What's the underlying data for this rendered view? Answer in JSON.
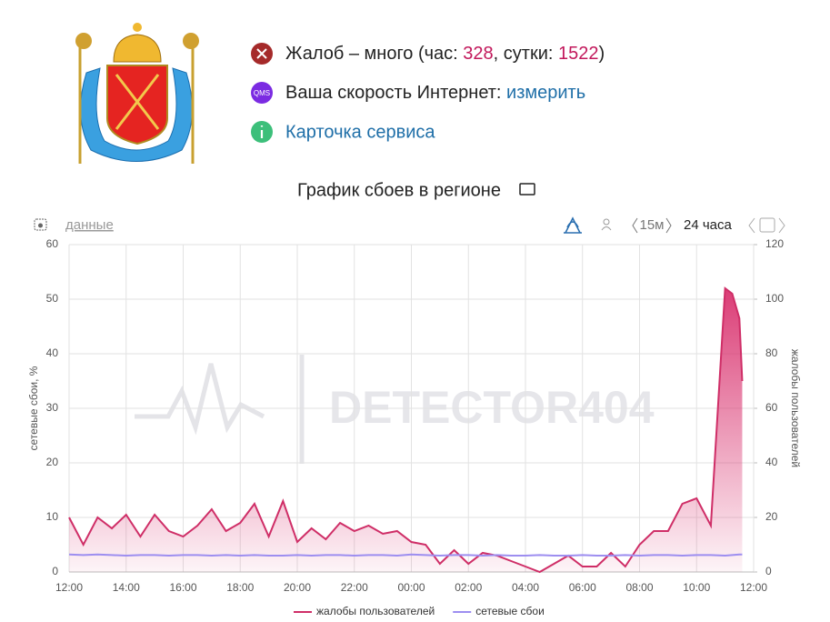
{
  "header": {
    "status": [
      {
        "parts": [
          "Жалоб – много (час: ",
          "328",
          ", сутки: ",
          "1522",
          ")"
        ]
      },
      {
        "icon": "QMS",
        "parts": [
          "Ваша скорость Интернет: ",
          "измерить"
        ]
      },
      {
        "parts": [
          "Карточка сервиса"
        ]
      }
    ]
  },
  "toolbar": {
    "data_link": "данные",
    "interval": "15м",
    "period": "24 часа"
  },
  "chart_data": {
    "type": "line",
    "title": "График сбоев в регионе",
    "watermark": "DETECTOR404",
    "y_label": "сетевые сбои, %",
    "y2_label": "жалобы пользователей",
    "x": [
      0,
      0.5,
      1,
      1.5,
      2,
      2.5,
      3,
      3.5,
      4,
      4.5,
      5,
      5.5,
      6,
      6.5,
      7,
      7.5,
      8,
      8.5,
      9,
      9.5,
      10,
      10.5,
      11,
      11.5,
      12,
      12.5,
      13,
      13.5,
      14,
      14.5,
      15,
      15.5,
      16,
      16.5,
      17,
      17.5,
      18,
      18.5,
      19,
      19.5,
      20,
      20.5,
      21,
      21.5,
      22,
      22.5,
      23,
      23.25,
      23.5,
      23.6
    ],
    "xlim": [
      0,
      24
    ],
    "xticks": [
      {
        "value": 0,
        "label": "12:00"
      },
      {
        "value": 2,
        "label": "14:00"
      },
      {
        "value": 4,
        "label": "16:00"
      },
      {
        "value": 6,
        "label": "18:00"
      },
      {
        "value": 8,
        "label": "20:00"
      },
      {
        "value": 10,
        "label": "22:00"
      },
      {
        "value": 12,
        "label": "00:00"
      },
      {
        "value": 14,
        "label": "02:00"
      },
      {
        "value": 16,
        "label": "04:00"
      },
      {
        "value": 18,
        "label": "06:00"
      },
      {
        "value": 20,
        "label": "08:00"
      },
      {
        "value": 22,
        "label": "10:00"
      },
      {
        "value": 24,
        "label": "12:00"
      }
    ],
    "ylim": [
      0,
      60
    ],
    "yticks": [
      0,
      10,
      20,
      30,
      40,
      50,
      60
    ],
    "y2lim": [
      0,
      120
    ],
    "y2ticks": [
      0,
      20,
      40,
      60,
      80,
      100,
      120
    ],
    "grid": true,
    "legend": "bottom",
    "series": [
      {
        "name": "жалобы пользователей",
        "color": "#cf2e67",
        "axis": "y2",
        "values": [
          20,
          10,
          20,
          16,
          21,
          13,
          21,
          15,
          13,
          17,
          23,
          15,
          18,
          25,
          13,
          26,
          11,
          16,
          12,
          18,
          15,
          17,
          14,
          15,
          11,
          10,
          3,
          8,
          3,
          7,
          6,
          4,
          2,
          0,
          3,
          6,
          2,
          2,
          7,
          2,
          10,
          15,
          15,
          25,
          27,
          17,
          104,
          102,
          93,
          70
        ]
      },
      {
        "name": "сетевые сбои",
        "color": "#9d8ef0",
        "values": [
          3.2,
          3.1,
          3.2,
          3.1,
          3.0,
          3.1,
          3.1,
          3.0,
          3.1,
          3.1,
          3.0,
          3.1,
          3.0,
          3.1,
          3.0,
          3.0,
          3.1,
          3.0,
          3.1,
          3.1,
          3.0,
          3.1,
          3.1,
          3.0,
          3.2,
          3.1,
          3.0,
          3.1,
          3.1,
          3.0,
          3.1,
          3.0,
          3.0,
          3.1,
          3.0,
          3.0,
          3.1,
          3.0,
          3.0,
          3.1,
          3.0,
          3.1,
          3.1,
          3.0,
          3.1,
          3.1,
          3.0,
          3.1,
          3.2,
          3.2
        ]
      }
    ]
  }
}
